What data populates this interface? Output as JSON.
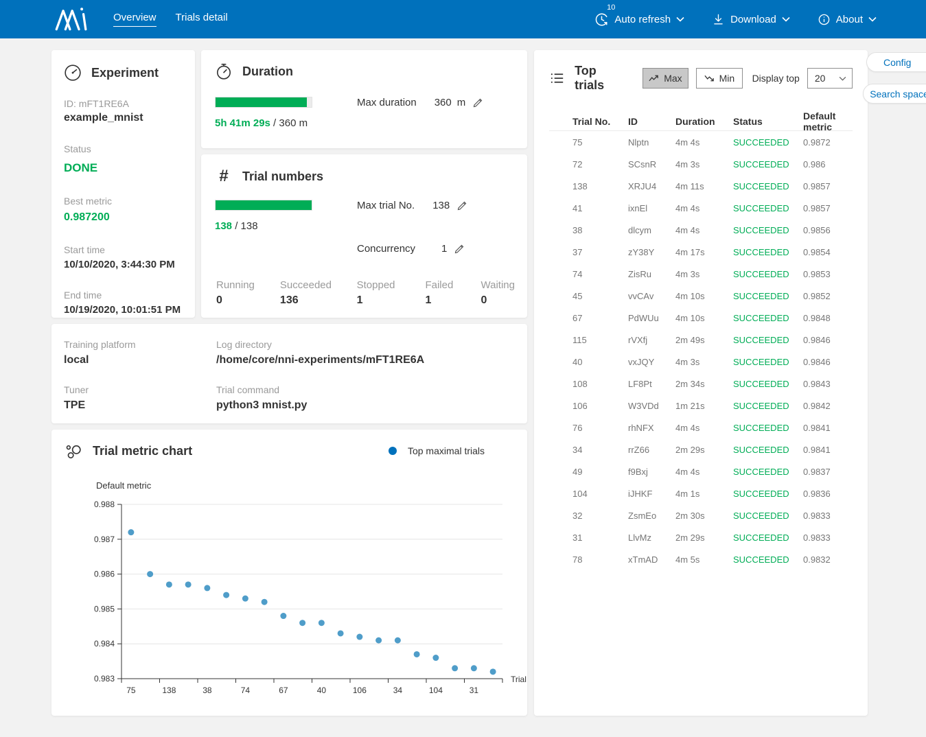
{
  "navbar": {
    "logo_name": "nni-logo",
    "tabs": [
      {
        "label": "Overview",
        "active": true
      },
      {
        "label": "Trials detail",
        "active": false
      }
    ],
    "auto_refresh": {
      "label": "Auto refresh",
      "interval_badge": "10",
      "icon": "clock-refresh-icon"
    },
    "download": {
      "label": "Download",
      "icon": "download-icon"
    },
    "about": {
      "label": "About",
      "icon": "info-icon"
    }
  },
  "experiment": {
    "title": "Experiment",
    "icon": "gauge-icon",
    "id_text": "ID: mFT1RE6A",
    "name": "example_mnist",
    "status_label": "Status",
    "status_value": "DONE",
    "best_metric_label": "Best metric",
    "best_metric_value": "0.987200",
    "start_time_label": "Start time",
    "start_time_value": "10/10/2020, 3:44:30 PM",
    "end_time_label": "End time",
    "end_time_value": "10/19/2020, 10:01:51 PM"
  },
  "duration": {
    "title": "Duration",
    "icon": "stopwatch-icon",
    "elapsed": "5h 41m 29s",
    "separator": " / ",
    "total": "360 m",
    "progress_percent": 95,
    "max_duration_label": "Max duration",
    "max_duration_value": "360",
    "max_duration_unit": "m"
  },
  "trial_numbers": {
    "title": "Trial numbers",
    "icon_glyph": "#",
    "done": "138",
    "separator": " / ",
    "total": "138",
    "progress_percent": 100,
    "max_trial_label": "Max trial No.",
    "max_trial_value": "138",
    "concurrency_label": "Concurrency",
    "concurrency_value": "1",
    "stats": [
      {
        "label": "Running",
        "value": "0"
      },
      {
        "label": "Succeeded",
        "value": "136"
      },
      {
        "label": "Stopped",
        "value": "1"
      },
      {
        "label": "Failed",
        "value": "1"
      },
      {
        "label": "Waiting",
        "value": "0"
      }
    ]
  },
  "platform": {
    "training_platform_label": "Training platform",
    "training_platform_value": "local",
    "tuner_label": "Tuner",
    "tuner_value": "TPE",
    "log_directory_label": "Log directory",
    "log_directory_value": "/home/core/nni-experiments/mFT1RE6A",
    "trial_command_label": "Trial command",
    "trial_command_value": "python3 mnist.py"
  },
  "metric_chart": {
    "title": "Trial metric chart",
    "icon": "scatter-bubbles-icon",
    "legend_label": "Top maximal trials"
  },
  "chart_data": {
    "type": "scatter",
    "title": "Trial metric chart",
    "xlabel": "Trial",
    "ylabel": "Default metric",
    "x_categories": [
      75,
      72,
      138,
      41,
      38,
      37,
      74,
      45,
      67,
      115,
      40,
      108,
      106,
      76,
      34,
      49,
      104,
      32,
      31,
      78
    ],
    "x_tick_labels_shown": [
      "75",
      "138",
      "38",
      "74",
      "67",
      "40",
      "106",
      "34",
      "104",
      "31"
    ],
    "values": [
      0.9872,
      0.986,
      0.9857,
      0.9857,
      0.9856,
      0.9854,
      0.9853,
      0.9852,
      0.9848,
      0.9846,
      0.9846,
      0.9843,
      0.9842,
      0.9841,
      0.9841,
      0.9837,
      0.9836,
      0.9833,
      0.9833,
      0.9832
    ],
    "ylim": [
      0.983,
      0.988
    ],
    "y_ticks": [
      0.988,
      0.987,
      0.986,
      0.985,
      0.984,
      0.983
    ],
    "grid": true,
    "legend": [
      "Top maximal trials"
    ],
    "legend_position": "top-right",
    "point_color": "#4f9dc9",
    "legend_color": "#0071bc"
  },
  "top_trials": {
    "title": "Top trials",
    "icon": "bulleted-list-icon",
    "max_button": "Max",
    "min_button": "Min",
    "display_top_label": "Display top",
    "display_top_value": "20",
    "config_button": "Config",
    "search_space_button": "Search space",
    "columns": [
      "Trial No.",
      "ID",
      "Duration",
      "Status",
      "Default metric"
    ],
    "rows": [
      {
        "no": "75",
        "id": "Nlptn",
        "duration": "4m 4s",
        "status": "SUCCEEDED",
        "metric": "0.9872"
      },
      {
        "no": "72",
        "id": "SCsnR",
        "duration": "4m 3s",
        "status": "SUCCEEDED",
        "metric": "0.986"
      },
      {
        "no": "138",
        "id": "XRJU4",
        "duration": "4m 11s",
        "status": "SUCCEEDED",
        "metric": "0.9857"
      },
      {
        "no": "41",
        "id": "ixnEl",
        "duration": "4m 4s",
        "status": "SUCCEEDED",
        "metric": "0.9857"
      },
      {
        "no": "38",
        "id": "dlcym",
        "duration": "4m 4s",
        "status": "SUCCEEDED",
        "metric": "0.9856"
      },
      {
        "no": "37",
        "id": "zY38Y",
        "duration": "4m 17s",
        "status": "SUCCEEDED",
        "metric": "0.9854"
      },
      {
        "no": "74",
        "id": "ZisRu",
        "duration": "4m 3s",
        "status": "SUCCEEDED",
        "metric": "0.9853"
      },
      {
        "no": "45",
        "id": "vvCAv",
        "duration": "4m 10s",
        "status": "SUCCEEDED",
        "metric": "0.9852"
      },
      {
        "no": "67",
        "id": "PdWUu",
        "duration": "4m 10s",
        "status": "SUCCEEDED",
        "metric": "0.9848"
      },
      {
        "no": "115",
        "id": "rVXfj",
        "duration": "2m 49s",
        "status": "SUCCEEDED",
        "metric": "0.9846"
      },
      {
        "no": "40",
        "id": "vxJQY",
        "duration": "4m 3s",
        "status": "SUCCEEDED",
        "metric": "0.9846"
      },
      {
        "no": "108",
        "id": "LF8Pt",
        "duration": "2m 34s",
        "status": "SUCCEEDED",
        "metric": "0.9843"
      },
      {
        "no": "106",
        "id": "W3VDd",
        "duration": "1m 21s",
        "status": "SUCCEEDED",
        "metric": "0.9842"
      },
      {
        "no": "76",
        "id": "rhNFX",
        "duration": "4m 4s",
        "status": "SUCCEEDED",
        "metric": "0.9841"
      },
      {
        "no": "34",
        "id": "rrZ66",
        "duration": "2m 29s",
        "status": "SUCCEEDED",
        "metric": "0.9841"
      },
      {
        "no": "49",
        "id": "f9Bxj",
        "duration": "4m 4s",
        "status": "SUCCEEDED",
        "metric": "0.9837"
      },
      {
        "no": "104",
        "id": "iJHKF",
        "duration": "4m 1s",
        "status": "SUCCEEDED",
        "metric": "0.9836"
      },
      {
        "no": "32",
        "id": "ZsmEo",
        "duration": "2m 30s",
        "status": "SUCCEEDED",
        "metric": "0.9833"
      },
      {
        "no": "31",
        "id": "LlvMz",
        "duration": "2m 29s",
        "status": "SUCCEEDED",
        "metric": "0.9833"
      },
      {
        "no": "78",
        "id": "xTmAD",
        "duration": "4m 5s",
        "status": "SUCCEEDED",
        "metric": "0.9832"
      }
    ]
  },
  "colors": {
    "navbar_bg": "#0071bc",
    "accent_blue": "#0071bc",
    "success_green": "#00ad56",
    "chart_point_blue": "#4f9dc9",
    "page_bg": "#f2f2f2"
  }
}
